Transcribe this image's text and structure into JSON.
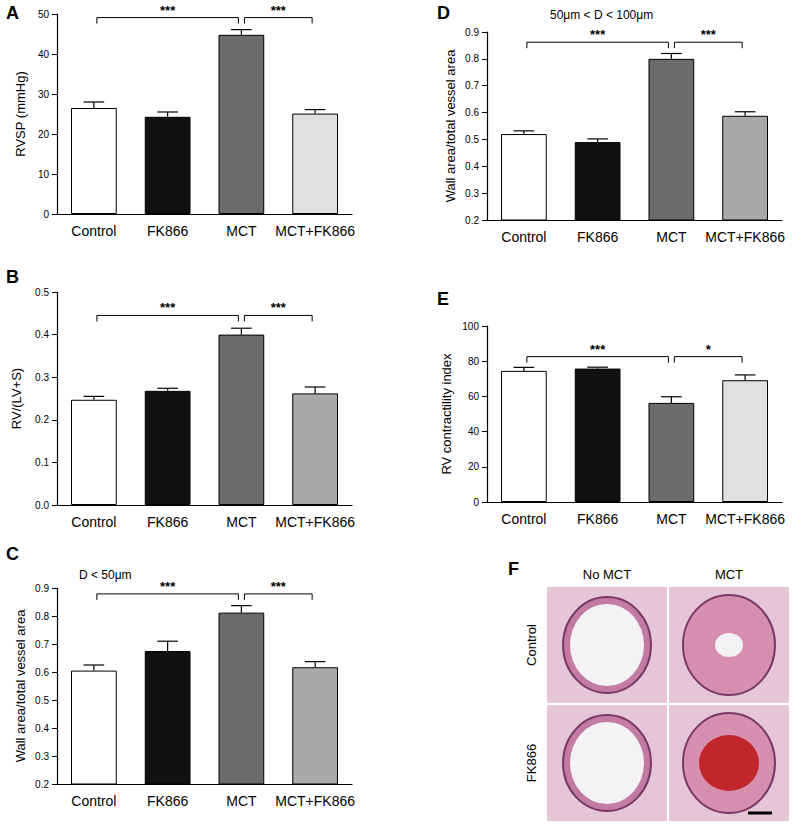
{
  "chart_data": [
    {
      "panel": "A",
      "type": "bar",
      "categories": [
        "Control",
        "FK866",
        "MCT",
        "MCT+FK866"
      ],
      "values": [
        26.5,
        24.3,
        44.8,
        25.1
      ],
      "errors": [
        1.5,
        1.2,
        1.3,
        1.0
      ],
      "colors": [
        "#ffffff",
        "#111111",
        "#6b6b6b",
        "#e0e0e0"
      ],
      "y_label": "RVSP (mmHg)",
      "ylim": [
        0,
        50
      ],
      "yticks": [
        0,
        10,
        20,
        30,
        40,
        50
      ],
      "grid": false,
      "annotations": [
        {
          "text": "***",
          "from": "Control",
          "to": "MCT"
        },
        {
          "text": "***",
          "from": "MCT",
          "to": "MCT+FK866"
        }
      ]
    },
    {
      "panel": "B",
      "type": "bar",
      "categories": [
        "Control",
        "FK866",
        "MCT",
        "MCT+FK866"
      ],
      "values": [
        0.247,
        0.268,
        0.4,
        0.262
      ],
      "errors": [
        0.008,
        0.006,
        0.015,
        0.015
      ],
      "colors": [
        "#ffffff",
        "#111111",
        "#6b6b6b",
        "#a9a9a9"
      ],
      "y_label": "RV/(LV+S)",
      "ylim": [
        0,
        0.5
      ],
      "yticks": [
        {
          "value": 0,
          "label": "0.0"
        },
        0.1,
        0.2,
        0.3,
        0.4,
        0.5
      ],
      "grid": false,
      "annotations": [
        {
          "text": "***",
          "from": "Control",
          "to": "MCT"
        },
        {
          "text": "***",
          "from": "MCT",
          "to": "MCT+FK866"
        }
      ]
    },
    {
      "panel": "C",
      "type": "bar",
      "title": "D < 50μm",
      "categories": [
        "Control",
        "FK866",
        "MCT",
        "MCT+FK866"
      ],
      "values": [
        0.605,
        0.675,
        0.812,
        0.617
      ],
      "errors": [
        0.02,
        0.035,
        0.025,
        0.02
      ],
      "colors": [
        "#ffffff",
        "#111111",
        "#6b6b6b",
        "#a9a9a9"
      ],
      "y_label": "Wall area/total vessel area",
      "ylim": [
        0.2,
        0.9
      ],
      "yticks": [
        0.2,
        0.3,
        0.4,
        0.5,
        0.6,
        0.7,
        0.8,
        0.9
      ],
      "grid": false,
      "annotations": [
        {
          "text": "***",
          "from": "Control",
          "to": "MCT"
        },
        {
          "text": "***",
          "from": "MCT",
          "to": "MCT+FK866"
        }
      ]
    },
    {
      "panel": "D",
      "type": "bar",
      "title": "50μm < D < 100μm",
      "categories": [
        "Control",
        "FK866",
        "MCT",
        "MCT+FK866"
      ],
      "values": [
        0.52,
        0.49,
        0.8,
        0.588
      ],
      "errors": [
        0.012,
        0.012,
        0.02,
        0.015
      ],
      "colors": [
        "#ffffff",
        "#111111",
        "#6b6b6b",
        "#a9a9a9"
      ],
      "y_label": "Wall area/total vessel area",
      "ylim": [
        0.2,
        0.9
      ],
      "yticks": [
        0.2,
        0.3,
        0.4,
        0.5,
        0.6,
        0.7,
        0.8,
        0.9
      ],
      "grid": false,
      "annotations": [
        {
          "text": "***",
          "from": "Control",
          "to": "MCT"
        },
        {
          "text": "***",
          "from": "MCT",
          "to": "MCT+FK866"
        }
      ]
    },
    {
      "panel": "E",
      "type": "bar",
      "categories": [
        "Control",
        "FK866",
        "MCT",
        "MCT+FK866"
      ],
      "values": [
        74.5,
        75.8,
        56.3,
        69.2
      ],
      "errors": [
        2.0,
        0.8,
        3.5,
        3.0
      ],
      "colors": [
        "#ffffff",
        "#111111",
        "#6b6b6b",
        "#e0e0e0"
      ],
      "y_label": "RV contractility index",
      "ylim": [
        0,
        100
      ],
      "yticks": [
        0,
        20,
        40,
        60,
        80,
        100
      ],
      "grid": false,
      "annotations": [
        {
          "text": "***",
          "from": "Control",
          "to": "MCT"
        },
        {
          "text": "*",
          "from": "MCT",
          "to": "MCT+FK866"
        }
      ]
    }
  ],
  "image_panel": {
    "panel": "F",
    "columns": [
      "No MCT",
      "MCT"
    ],
    "rows": [
      "Control",
      "FK866"
    ]
  }
}
